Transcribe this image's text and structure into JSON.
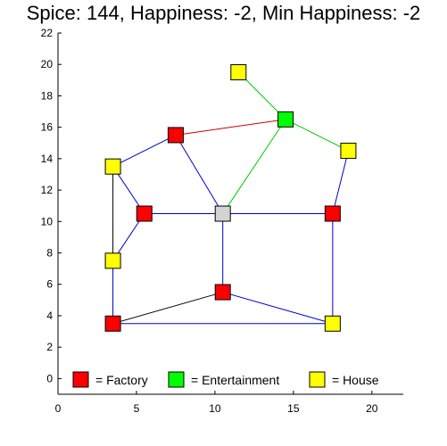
{
  "status": {
    "spice_label": "Spice:",
    "spice": 144,
    "happiness_label": "Happiness:",
    "happiness": -2,
    "min_happiness_label": "Min Happiness:",
    "min_happiness": -2
  },
  "axes": {
    "xlim": [
      0,
      22
    ],
    "ylim": [
      -1,
      22
    ],
    "x_ticks": [
      0,
      5,
      10,
      15,
      20
    ],
    "y_ticks": [
      0,
      2,
      4,
      6,
      8,
      10,
      12,
      14,
      16,
      18,
      20,
      22
    ],
    "grid": false
  },
  "colors": {
    "Factory": "#ff0000",
    "Entertainment": "#00ff00",
    "House": "#ffff00",
    "Unbuilt": "#d3d3d3",
    "road_blue": "#0000cc",
    "road_red": "#cc0000",
    "road_green": "#00cc00",
    "road_black": "#000000"
  },
  "buildings": [
    {
      "id": "h1",
      "type": "House",
      "x": 11.5,
      "y": 19.5
    },
    {
      "id": "e1",
      "type": "Entertainment",
      "x": 14.5,
      "y": 16.5
    },
    {
      "id": "f1",
      "type": "Factory",
      "x": 7.5,
      "y": 15.5
    },
    {
      "id": "h2",
      "type": "House",
      "x": 18.5,
      "y": 14.5
    },
    {
      "id": "h3",
      "type": "House",
      "x": 3.5,
      "y": 13.5
    },
    {
      "id": "f2",
      "type": "Factory",
      "x": 5.5,
      "y": 10.5
    },
    {
      "id": "u1",
      "type": "Unbuilt",
      "x": 10.5,
      "y": 10.5
    },
    {
      "id": "f3",
      "type": "Factory",
      "x": 17.5,
      "y": 10.5
    },
    {
      "id": "h4",
      "type": "House",
      "x": 3.5,
      "y": 7.5
    },
    {
      "id": "f4",
      "type": "Factory",
      "x": 10.5,
      "y": 5.5
    },
    {
      "id": "f5",
      "type": "Factory",
      "x": 3.5,
      "y": 3.5
    },
    {
      "id": "h5",
      "type": "House",
      "x": 17.5,
      "y": 3.5
    }
  ],
  "roads": [
    {
      "from": "h1",
      "to": "e1",
      "color": "road_green"
    },
    {
      "from": "f1",
      "to": "e1",
      "color": "road_red"
    },
    {
      "from": "e1",
      "to": "h2",
      "color": "road_green"
    },
    {
      "from": "e1",
      "to": "u1",
      "color": "road_green"
    },
    {
      "from": "h3",
      "to": "f1",
      "color": "road_blue"
    },
    {
      "from": "f1",
      "to": "u1",
      "color": "road_blue"
    },
    {
      "from": "h2",
      "to": "f3",
      "color": "road_blue"
    },
    {
      "from": "h3",
      "to": "f2",
      "color": "road_blue"
    },
    {
      "from": "h3",
      "to": "h4",
      "color": "road_black"
    },
    {
      "from": "f2",
      "to": "u1",
      "color": "road_blue"
    },
    {
      "from": "u1",
      "to": "f3",
      "color": "road_blue"
    },
    {
      "from": "f2",
      "to": "h4",
      "color": "road_blue"
    },
    {
      "from": "u1",
      "to": "f4",
      "color": "road_blue"
    },
    {
      "from": "f3",
      "to": "h5",
      "color": "road_blue"
    },
    {
      "from": "h4",
      "to": "f5",
      "color": "road_blue"
    },
    {
      "from": "f5",
      "to": "f4",
      "color": "road_black"
    },
    {
      "from": "f4",
      "to": "h5",
      "color": "road_blue"
    },
    {
      "from": "f5",
      "to": "h5",
      "color": "road_blue"
    }
  ],
  "legend": [
    {
      "type": "Factory",
      "label": "= Factory"
    },
    {
      "type": "Entertainment",
      "label": "= Entertainment"
    },
    {
      "type": "House",
      "label": "= House"
    }
  ]
}
